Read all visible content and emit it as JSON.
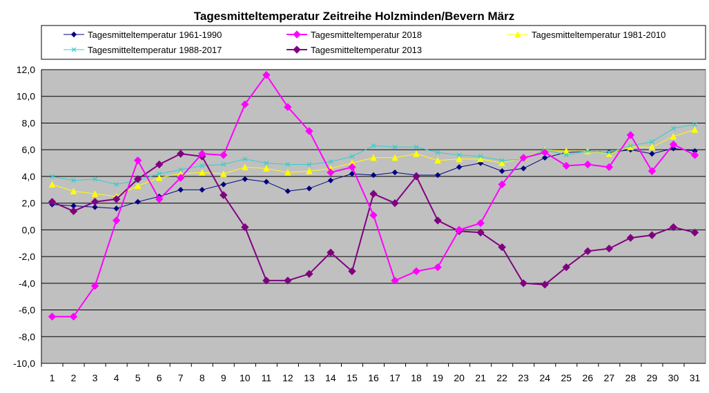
{
  "chart_data": {
    "type": "line",
    "title": "Tagesmitteltemperatur Zeitreihe Holzminden/Bevern März",
    "xlabel": "",
    "ylabel": "",
    "categories": [
      "1",
      "2",
      "3",
      "4",
      "5",
      "6",
      "7",
      "8",
      "9",
      "10",
      "11",
      "12",
      "13",
      "14",
      "15",
      "16",
      "17",
      "18",
      "19",
      "20",
      "21",
      "22",
      "23",
      "24",
      "25",
      "26",
      "27",
      "28",
      "29",
      "30",
      "31"
    ],
    "ylim": [
      -10,
      12
    ],
    "yticks": [
      "12,0",
      "10,0",
      "8,0",
      "6,0",
      "4,0",
      "2,0",
      "0,0",
      "-2,0",
      "-4,0",
      "-6,0",
      "-8,0",
      "-10,0"
    ],
    "grid": true,
    "plot_background": "#c0c0c0",
    "legend_position": "top",
    "series": [
      {
        "name": "Tagesmitteltemperatur 1961-1990",
        "color": "#000080",
        "marker": "diamond-small",
        "values": [
          1.9,
          1.8,
          1.7,
          1.6,
          2.1,
          2.5,
          3.0,
          3.0,
          3.4,
          3.8,
          3.6,
          2.9,
          3.1,
          3.7,
          4.2,
          4.1,
          4.3,
          4.1,
          4.1,
          4.7,
          5.0,
          4.4,
          4.6,
          5.4,
          5.8,
          5.9,
          5.8,
          6.0,
          5.7,
          6.1,
          5.9
        ]
      },
      {
        "name": "Tagesmitteltemperatur 2018",
        "color": "#ff00ff",
        "marker": "diamond",
        "values": [
          -6.5,
          -6.5,
          -4.2,
          0.7,
          5.2,
          2.3,
          3.9,
          5.7,
          5.6,
          9.4,
          11.6,
          9.2,
          7.4,
          4.3,
          4.7,
          1.1,
          -3.8,
          -3.1,
          -2.8,
          0.0,
          0.5,
          3.4,
          5.4,
          5.8,
          4.8,
          4.9,
          4.7,
          7.1,
          4.4,
          6.4,
          5.6
        ]
      },
      {
        "name": "Tagesmitteltemperatur 1981-2010",
        "color": "#ffff00",
        "marker": "triangle",
        "values": [
          3.4,
          2.9,
          2.7,
          2.5,
          3.3,
          3.9,
          4.2,
          4.3,
          4.2,
          4.7,
          4.6,
          4.3,
          4.4,
          4.6,
          5.0,
          5.4,
          5.4,
          5.7,
          5.2,
          5.3,
          5.3,
          5.0,
          5.4,
          6.0,
          5.9,
          5.9,
          5.7,
          6.2,
          6.2,
          7.0,
          7.5
        ]
      },
      {
        "name": "Tagesmitteltemperatur 1988-2017",
        "color": "#33cccc",
        "marker": "x",
        "values": [
          4.0,
          3.7,
          3.8,
          3.4,
          3.7,
          4.2,
          4.5,
          4.8,
          4.9,
          5.3,
          5.0,
          4.9,
          4.9,
          5.1,
          5.5,
          6.3,
          6.2,
          6.2,
          5.8,
          5.6,
          5.5,
          5.2,
          5.3,
          6.0,
          5.6,
          5.9,
          5.8,
          6.3,
          6.6,
          7.6,
          7.9
        ]
      },
      {
        "name": "Tagesmitteltemperatur 2013",
        "color": "#800080",
        "marker": "diamond",
        "values": [
          2.1,
          1.4,
          2.1,
          2.3,
          3.8,
          4.9,
          5.7,
          5.5,
          2.6,
          0.2,
          -3.8,
          -3.8,
          -3.3,
          -1.7,
          -3.1,
          2.7,
          2.0,
          4.0,
          0.7,
          -0.1,
          -0.2,
          -1.3,
          -4.0,
          -4.1,
          -2.8,
          -1.6,
          -1.4,
          -0.6,
          -0.4,
          0.2,
          -0.2
        ]
      }
    ]
  }
}
